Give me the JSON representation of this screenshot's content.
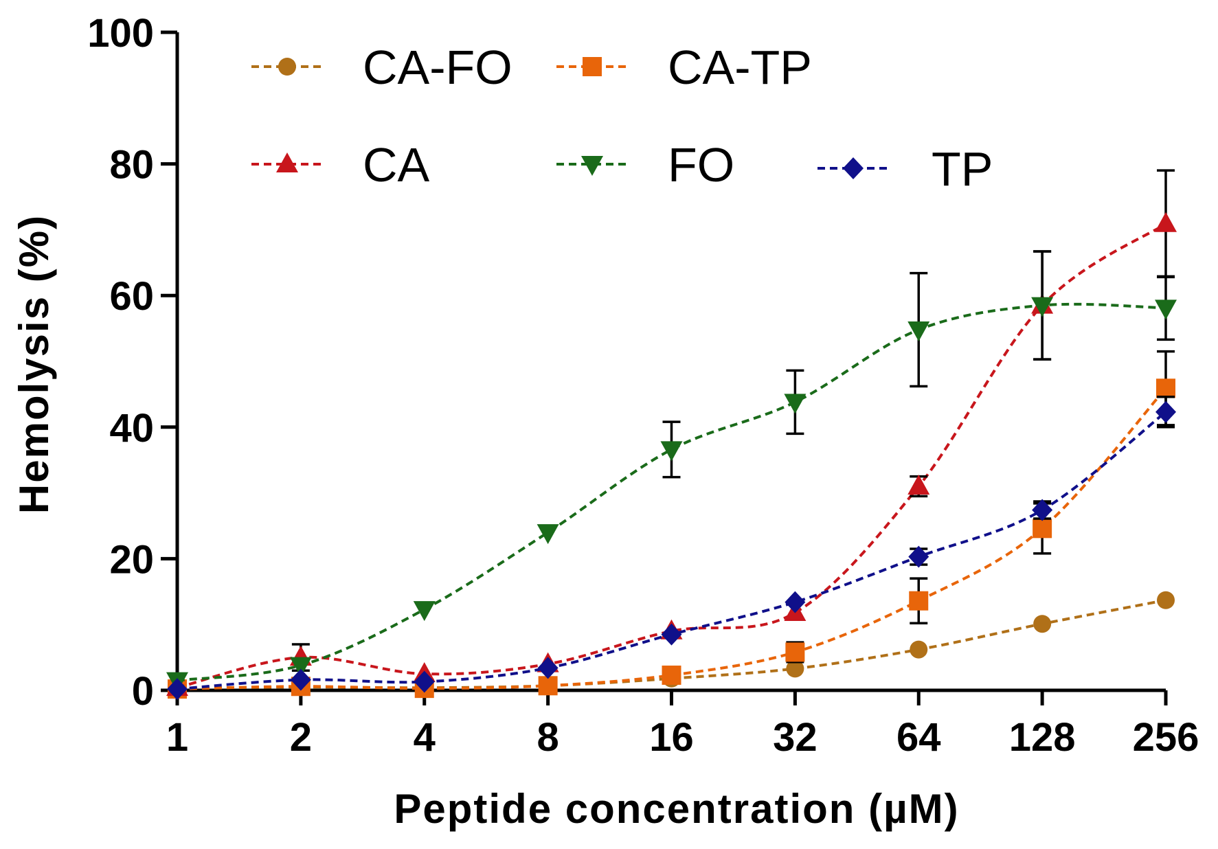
{
  "chart_data": {
    "type": "line",
    "xlabel": "Peptide concentration (µM)",
    "ylabel": "Hemolysis (%)",
    "x_scale": "log2",
    "x": [
      1,
      2,
      4,
      8,
      16,
      32,
      64,
      128,
      256
    ],
    "x_tick_labels": [
      "1",
      "2",
      "4",
      "8",
      "16",
      "32",
      "64",
      "128",
      "256"
    ],
    "ylim": [
      0,
      100
    ],
    "y_ticks": [
      0,
      20,
      40,
      60,
      80,
      100
    ],
    "grid": false,
    "legend_position": "top",
    "series": [
      {
        "name": "CA-FO",
        "color": "#b07018",
        "marker": "circle",
        "values": [
          0.3,
          0.5,
          0.4,
          0.7,
          1.8,
          3.3,
          6.2,
          10.1,
          13.7
        ],
        "errors": [
          0.2,
          0.3,
          0.2,
          0.3,
          0.5,
          0.6,
          0.8,
          0.8,
          0.8
        ]
      },
      {
        "name": "CA-TP",
        "color": "#e8650a",
        "marker": "square",
        "values": [
          0.2,
          0.6,
          0.3,
          0.7,
          2.3,
          5.8,
          13.6,
          24.6,
          45.9
        ],
        "errors": [
          0.2,
          0.3,
          0.2,
          0.3,
          0.6,
          1.5,
          3.4,
          3.8,
          5.6
        ]
      },
      {
        "name": "CA",
        "color": "#c8161c",
        "marker": "triangle-up",
        "values": [
          0.4,
          5.0,
          2.5,
          4.0,
          9.0,
          11.8,
          31.0,
          58.5,
          70.9
        ],
        "errors": [
          0.3,
          2.0,
          0.5,
          0.6,
          0.8,
          1.0,
          1.5,
          8.2,
          8.1
        ]
      },
      {
        "name": "FO",
        "color": "#1a6b1a",
        "marker": "triangle-down",
        "values": [
          1.5,
          3.8,
          12.3,
          24.0,
          36.6,
          43.8,
          54.8,
          58.5,
          58.1
        ],
        "errors": [
          0.4,
          0.6,
          0.8,
          0.9,
          4.2,
          4.8,
          8.6,
          8.2,
          4.8
        ]
      },
      {
        "name": "TP",
        "color": "#10108a",
        "marker": "diamond",
        "values": [
          0.2,
          1.6,
          1.3,
          3.4,
          8.5,
          13.4,
          20.3,
          27.4,
          42.3
        ],
        "errors": [
          0.2,
          0.4,
          0.3,
          0.5,
          0.8,
          1.0,
          1.2,
          1.3,
          2.3
        ]
      }
    ]
  }
}
